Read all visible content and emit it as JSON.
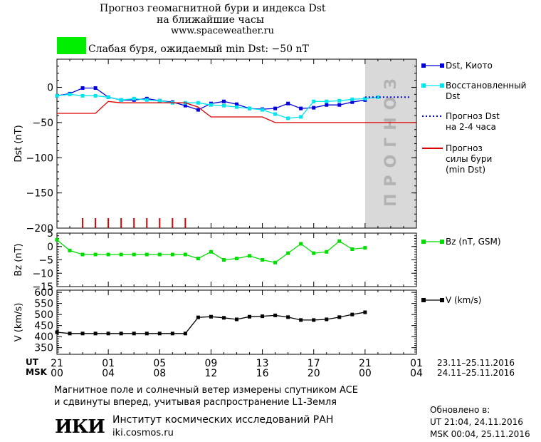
{
  "header": {
    "title_line1": "Прогноз геомагнитной бури и индекса Dst",
    "title_line2": "на ближайшие часы",
    "url": "www.spaceweather.ru",
    "status_color": "#00ee00",
    "status_text": "Слабая буря, ожидаемый min Dst: −50 nT"
  },
  "footer": {
    "note_line1": "Магнитное поле и солнечный ветер измерены спутником ACE",
    "note_line2": "и сдвинуты вперед, учитывая распространение L1-Земля",
    "institute": "Институт космических исследований РАН",
    "institute_url": "iki.cosmos.ru",
    "logo_text": "ИКИ",
    "updated_label": "Обновлено в:",
    "updated_ut": "UT  21:04, 24.11.2016",
    "updated_msk": "MSK 00:04, 25.11.2016"
  },
  "chart_data": [
    {
      "type": "line",
      "ylabel": "Dst (nT)",
      "ylim": [
        -200,
        40
      ],
      "yticks": [
        "0",
        "−50",
        "−100",
        "−150",
        "−200"
      ],
      "forecast_band_label": "ПРОГНОЗ",
      "forecast_band_color": "#d9d9d9",
      "series": [
        {
          "name": "Dst, Киото",
          "color": "#0000dd",
          "x": [
            21,
            22,
            23,
            24,
            25,
            26,
            27,
            28,
            29,
            30,
            31,
            32,
            33,
            34,
            35,
            36,
            37,
            38,
            39,
            40,
            41,
            42,
            43,
            44,
            45
          ],
          "values": [
            -12,
            -9,
            -1,
            -1,
            -14,
            -18,
            -18,
            -16,
            -19,
            -21,
            -26,
            -32,
            -23,
            -20,
            -24,
            -30,
            -31,
            -30,
            -23,
            -30,
            -29,
            -25,
            -25,
            -21,
            -18
          ]
        },
        {
          "name": "Восстановленный Dst",
          "color": "#00e5ee",
          "x": [
            21,
            22,
            23,
            24,
            25,
            26,
            27,
            28,
            29,
            30,
            31,
            32,
            33,
            34,
            35,
            36,
            37,
            38,
            39,
            40,
            41,
            42,
            43,
            44,
            45,
            46
          ],
          "values": [
            -12,
            -10,
            -12,
            -12,
            -14,
            -18,
            -16,
            -18,
            -19,
            -22,
            -22,
            -22,
            -25,
            -26,
            -28,
            -30,
            -32,
            -38,
            -44,
            -42,
            -20,
            -20,
            -19,
            -17,
            -16,
            -14
          ]
        },
        {
          "name": "Прогноз Dst на 2-4 часа",
          "color": "#0000dd",
          "x": [
            45,
            48.5
          ],
          "values": [
            -14,
            -14
          ]
        },
        {
          "name": "Прогноз силы бури (min Dst)",
          "color": "#dd0000",
          "x": [
            21,
            23,
            24,
            25,
            26,
            30,
            31,
            32,
            33,
            35,
            36,
            37,
            38,
            49
          ],
          "values": [
            -37,
            -37,
            -37,
            -20,
            -22,
            -22,
            -22,
            -28,
            -42,
            -42,
            -42,
            -42,
            -50,
            -50
          ]
        }
      ],
      "storm_bars_x": [
        23,
        24,
        25,
        26,
        27,
        28,
        29,
        30,
        31
      ]
    },
    {
      "type": "line",
      "ylabel": "Bz (nT)",
      "ylim": [
        -15,
        5
      ],
      "yticks": [
        "5",
        "0",
        "−5",
        "−10",
        "−15"
      ],
      "series": [
        {
          "name": "Bz (nT, GSM)",
          "color": "#00dd00",
          "x": [
            21,
            22,
            23,
            24,
            25,
            26,
            27,
            28,
            29,
            30,
            31,
            32,
            33,
            34,
            35,
            36,
            37,
            38,
            39,
            40,
            41,
            42,
            43,
            44,
            45
          ],
          "values": [
            2.5,
            -1.5,
            -3,
            -3,
            -3,
            -3,
            -3,
            -3,
            -3,
            -3,
            -3,
            -4.5,
            -2,
            -5,
            -4.5,
            -3.5,
            -5,
            -6,
            -2.5,
            1,
            -2.5,
            -2,
            2,
            -1,
            -0.5
          ]
        }
      ]
    },
    {
      "type": "line",
      "ylabel": "V (km/s)",
      "ylim": [
        320,
        610
      ],
      "yticks": [
        "600",
        "550",
        "500",
        "450",
        "400",
        "350"
      ],
      "series": [
        {
          "name": "V (km/s)",
          "color": "#000000",
          "x": [
            21,
            22,
            23,
            24,
            25,
            26,
            27,
            28,
            29,
            30,
            31,
            32,
            33,
            34,
            35,
            36,
            37,
            38,
            39,
            40,
            41,
            42,
            43,
            44,
            45
          ],
          "values": [
            420,
            414,
            414,
            414,
            414,
            414,
            414,
            414,
            414,
            414,
            414,
            487,
            490,
            485,
            478,
            490,
            492,
            496,
            488,
            475,
            475,
            478,
            488,
            500,
            510
          ]
        }
      ]
    }
  ],
  "time_axis": {
    "ut_label": "UT",
    "msk_label": "MSK",
    "ut_ticks": [
      "21",
      "01",
      "05",
      "09",
      "13",
      "17",
      "21",
      "01"
    ],
    "msk_ticks": [
      "00",
      "04",
      "08",
      "12",
      "16",
      "20",
      "00",
      "04"
    ],
    "ut_range": "23.11–25.11.2016",
    "msk_range": "24.11–25.11.2016"
  }
}
